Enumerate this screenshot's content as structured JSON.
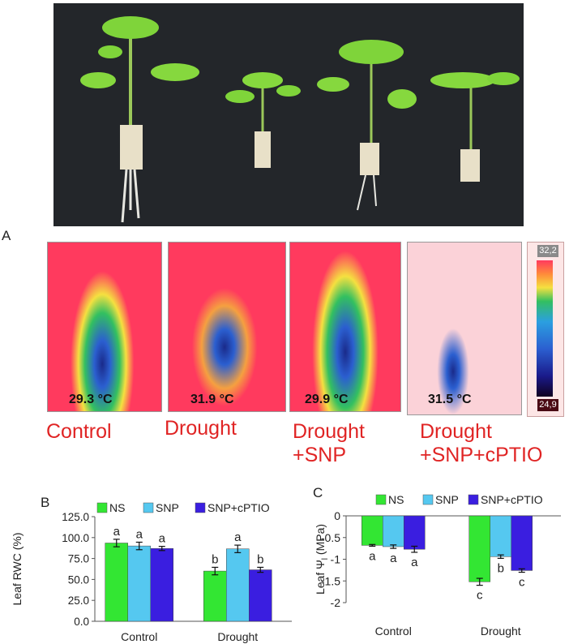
{
  "panel_labels": {
    "a": "A",
    "b": "B",
    "c": "C"
  },
  "thermal": {
    "temps": [
      "29.3 °C",
      "31.9 °C",
      "29.9 °C",
      "31.5 °C"
    ],
    "scale_max": "32,2",
    "scale_min": "24,9",
    "conditions": [
      {
        "line1": "Control",
        "line2": ""
      },
      {
        "line1": "Drought",
        "line2": ""
      },
      {
        "line1": "Drought",
        "line2": "+SNP"
      },
      {
        "line1": "Drought",
        "line2": "+SNP+cPTIO"
      }
    ]
  },
  "colors": {
    "ns": "#33e633",
    "snp": "#55c8f0",
    "snp_cptio": "#3a1ee0",
    "condition_text": "#e02424"
  },
  "chart_data": [
    {
      "type": "bar",
      "panel": "B",
      "categories": [
        "Control",
        "Drought"
      ],
      "series": [
        {
          "name": "NS",
          "values": [
            93.5,
            60.0
          ],
          "errors": [
            4.5,
            4.5
          ],
          "letters": [
            "a",
            "b"
          ]
        },
        {
          "name": "SNP",
          "values": [
            90.0,
            86.5
          ],
          "errors": [
            4.5,
            4.5
          ],
          "letters": [
            "a",
            "a"
          ]
        },
        {
          "name": "SNP+cPTIO",
          "values": [
            87.0,
            61.5
          ],
          "errors": [
            2.5,
            3.0
          ],
          "letters": [
            "a",
            "b"
          ]
        }
      ],
      "ylabel": "Leaf RWC (%)",
      "ylim": [
        0,
        125
      ],
      "yticks": [
        "0.0",
        "25.0",
        "50.0",
        "75.0",
        "100.0",
        "125.0"
      ],
      "legend": "top"
    },
    {
      "type": "bar",
      "panel": "C",
      "categories": [
        "Control",
        "Drought"
      ],
      "series": [
        {
          "name": "NS",
          "values": [
            -0.68,
            -1.52
          ],
          "errors": [
            0.02,
            0.08
          ],
          "letters": [
            "a",
            "c"
          ]
        },
        {
          "name": "SNP",
          "values": [
            -0.71,
            -0.94
          ],
          "errors": [
            0.04,
            0.04
          ],
          "letters": [
            "a",
            "b"
          ]
        },
        {
          "name": "SNP+cPTIO",
          "values": [
            -0.77,
            -1.26
          ],
          "errors": [
            0.07,
            0.04
          ],
          "letters": [
            "a",
            "c"
          ]
        }
      ],
      "ylabel": "Leaf Ψl (MPa)",
      "ylabel_main": "Leaf Ψ",
      "ylabel_sub": "l",
      "ylabel_unit": " (MPa)",
      "ylim": [
        -2,
        0
      ],
      "yticks": [
        "0",
        "-0.5",
        "-1",
        "-1.5",
        "-2"
      ],
      "legend": "top"
    }
  ]
}
